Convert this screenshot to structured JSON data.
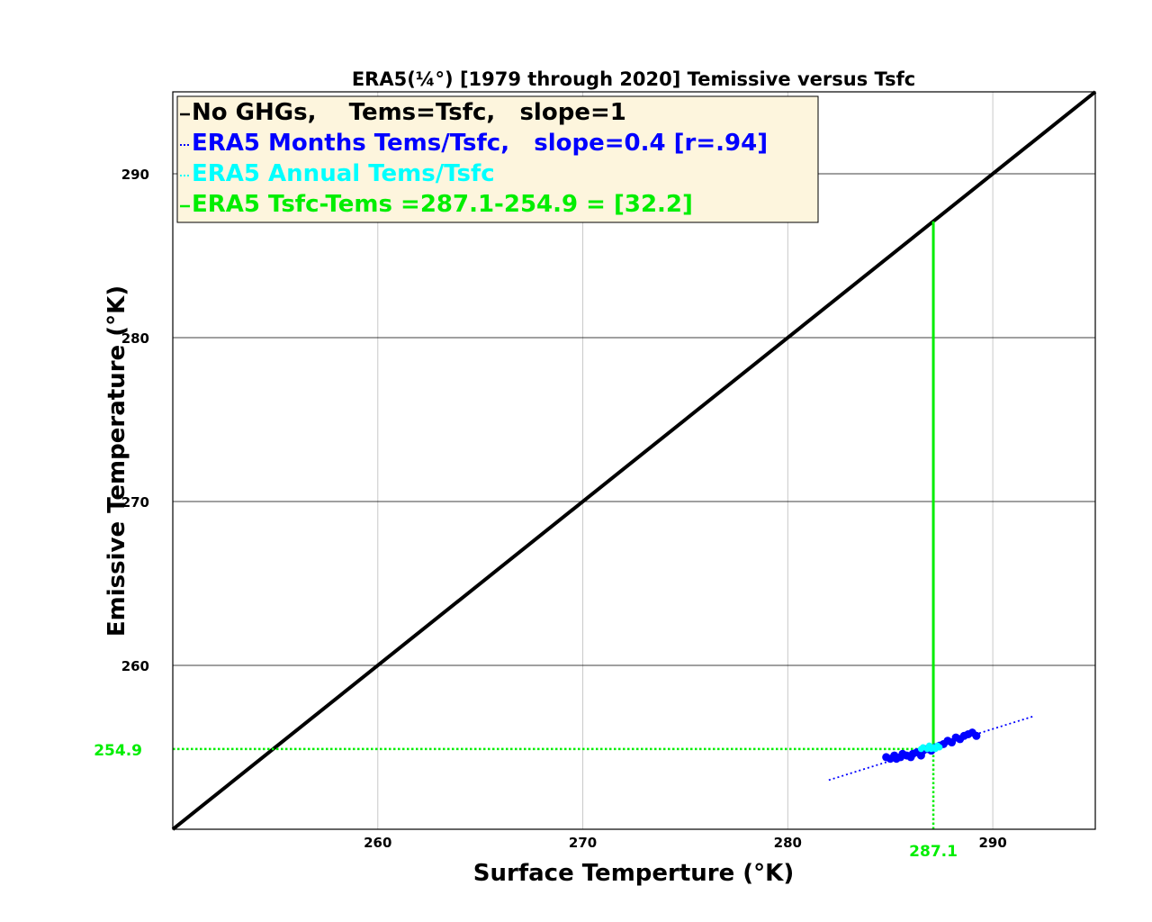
{
  "chart_data": {
    "type": "scatter",
    "title": "ERA5(¼°) [1979 through 2020] Temissive versus Tsfc",
    "xlabel": "Surface Temperture (°K)",
    "ylabel": "Emissive Temperature (°K)",
    "xlim": [
      250,
      295
    ],
    "ylim": [
      250,
      295
    ],
    "xticks": [
      260,
      270,
      280,
      290
    ],
    "yticks": [
      260,
      270,
      280,
      290
    ],
    "grid": true,
    "legend_position": "top-left",
    "series": [
      {
        "name": "No GHGs,    Tems=Tsfc,   slope=1",
        "kind": "line",
        "color": "#000000",
        "x": [
          250,
          295
        ],
        "y": [
          250,
          295
        ]
      },
      {
        "name": "ERA5 Months Tems/Tsfc,   slope=0.4 [r=.94]",
        "kind": "scatter+fit",
        "color": "#0000ff",
        "x": [
          284.8,
          285.0,
          285.2,
          285.3,
          285.5,
          285.6,
          285.8,
          286.0,
          286.1,
          286.3,
          286.5,
          286.6,
          286.8,
          287.0,
          287.2,
          287.4,
          287.6,
          287.8,
          288.0,
          288.2,
          288.4,
          288.6,
          288.8,
          289.0,
          289.2
        ],
        "y": [
          254.4,
          254.3,
          254.5,
          254.3,
          254.4,
          254.6,
          254.5,
          254.4,
          254.6,
          254.7,
          254.5,
          254.8,
          254.9,
          254.8,
          255.0,
          255.1,
          255.2,
          255.4,
          255.3,
          255.6,
          255.5,
          255.7,
          255.8,
          255.9,
          255.7
        ],
        "fit": {
          "x": [
            282.0,
            292.0
          ],
          "y": [
            253.0,
            256.9
          ]
        }
      },
      {
        "name": "ERA5 Annual Tems/Tsfc",
        "kind": "scatter",
        "color": "#00ffff",
        "x": [
          286.5,
          286.6,
          286.8,
          286.9,
          287.0,
          287.1,
          287.2,
          287.3,
          287.4
        ],
        "y": [
          254.9,
          255.0,
          254.9,
          255.1,
          254.9,
          255.0,
          254.9,
          255.1,
          255.0
        ]
      },
      {
        "name": "ERA5 Tsfc-Tems =287.1-254.9 = [32.2]",
        "kind": "reference",
        "color": "#00ee00",
        "vertical_line": {
          "x": 287.1,
          "y": [
            254.9,
            287.1
          ]
        },
        "h_dotted": {
          "y": 254.9,
          "x": [
            250,
            287.1
          ]
        },
        "v_dotted": {
          "x": 287.1,
          "y": [
            250,
            254.9
          ]
        },
        "x_label": "287.1",
        "y_label": "254.9"
      }
    ]
  }
}
